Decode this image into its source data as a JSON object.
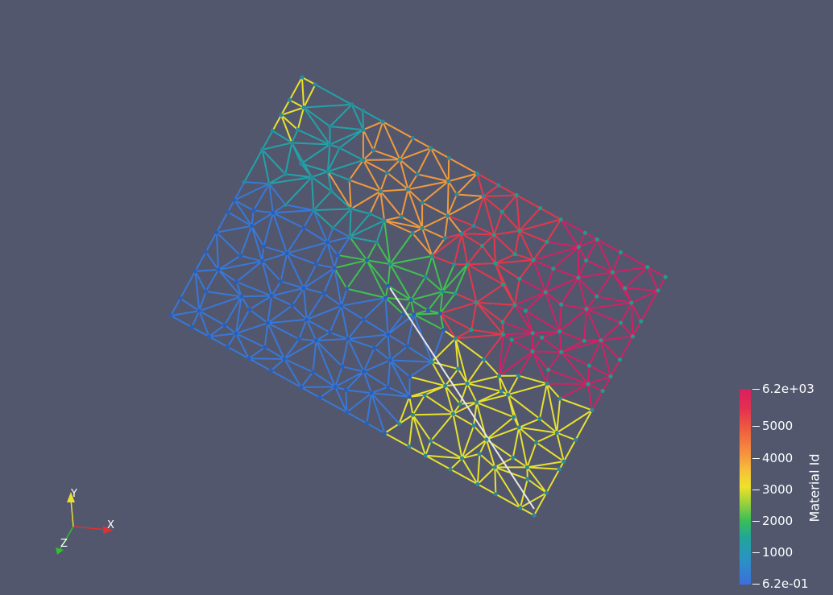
{
  "colorbar": {
    "title": "Material Id",
    "ticks": [
      "6.2e+03",
      "5000",
      "4000",
      "3000",
      "2000",
      "1000",
      "6.2e-01"
    ],
    "range": [
      0.62,
      6200
    ],
    "colormap": [
      "#3b6fdc",
      "#20a69a",
      "#3dbf55",
      "#eee22a",
      "#f6923e",
      "#da1f5e"
    ]
  },
  "orientation_axes": {
    "x_label": "X",
    "y_label": "Y",
    "z_label": "Z",
    "x_color": "#e03030",
    "y_color": "#e8e030",
    "z_color": "#30c030"
  },
  "background": "#52576e"
}
